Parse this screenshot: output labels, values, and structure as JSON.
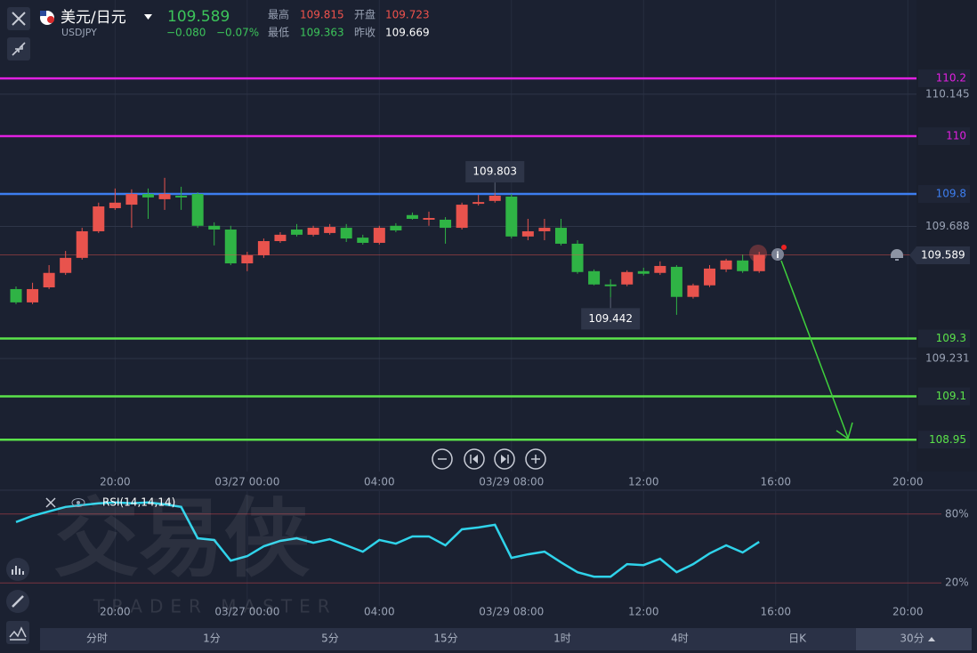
{
  "header": {
    "name": "美元/日元",
    "symbol": "USDJPY",
    "price": 109.589,
    "change": "−0.080",
    "change_pct": "−0.07%",
    "high_label": "最高",
    "high": 109.815,
    "open_label": "开盘",
    "open": 109.723,
    "low_label": "最低",
    "low": 109.363,
    "prev_label": "昨收",
    "prev_close": 109.669
  },
  "chart_data": [
    {
      "type": "candlestick",
      "categories": [
        null,
        null,
        null,
        null,
        null,
        null,
        "20:00",
        null,
        null,
        null,
        null,
        null,
        null,
        null,
        "03/27 00:00",
        null,
        null,
        null,
        null,
        null,
        null,
        null,
        "04:00",
        null,
        null,
        null,
        null,
        null,
        null,
        null,
        "03/29 08:00",
        null,
        null,
        null,
        null,
        null,
        null,
        null,
        "12:00",
        null,
        null,
        null,
        null,
        null,
        null,
        null,
        "16:00",
        null,
        null,
        null,
        null,
        null,
        null,
        null,
        "20:00",
        null
      ],
      "open": [
        109.471,
        109.425,
        109.477,
        109.527,
        109.579,
        109.671,
        109.751,
        109.763,
        109.8,
        109.782,
        109.794,
        109.8,
        109.69,
        109.677,
        109.56,
        109.588,
        109.637,
        109.677,
        109.659,
        109.665,
        109.683,
        109.649,
        109.631,
        109.69,
        109.727,
        109.711,
        109.711,
        109.683,
        109.766,
        109.776,
        109.791,
        109.653,
        109.671,
        109.683,
        109.628,
        109.533,
        109.487,
        109.487,
        109.533,
        109.527,
        109.548,
        109.444,
        109.484,
        109.539,
        109.57,
        109.533,
        null,
        null,
        null,
        null,
        null,
        null,
        null,
        null,
        null,
        null
      ],
      "high": [
        109.48,
        109.493,
        109.554,
        109.603,
        109.683,
        109.77,
        109.819,
        109.816,
        109.819,
        109.856,
        109.825,
        109.806,
        109.702,
        109.69,
        109.6,
        109.646,
        109.668,
        109.696,
        109.69,
        109.696,
        109.696,
        109.659,
        109.69,
        109.699,
        109.736,
        109.739,
        109.72,
        109.77,
        109.797,
        109.803,
        109.8,
        109.714,
        109.714,
        109.714,
        109.64,
        109.539,
        109.505,
        109.536,
        109.545,
        109.567,
        109.554,
        109.49,
        109.554,
        109.576,
        109.591,
        109.6,
        null,
        null,
        null,
        null,
        null,
        null,
        null,
        null,
        null,
        null
      ],
      "low": [
        109.419,
        109.419,
        109.471,
        109.52,
        109.573,
        109.665,
        109.745,
        109.683,
        109.714,
        109.745,
        109.745,
        109.683,
        109.622,
        109.554,
        109.533,
        109.579,
        109.631,
        109.653,
        109.653,
        109.659,
        109.634,
        109.625,
        109.625,
        109.668,
        109.711,
        109.69,
        109.628,
        109.677,
        109.76,
        109.77,
        109.646,
        109.64,
        109.64,
        109.622,
        109.524,
        109.484,
        109.442,
        109.481,
        109.518,
        109.52,
        109.382,
        109.438,
        109.478,
        109.53,
        109.527,
        109.527,
        null,
        null,
        null,
        null,
        null,
        null,
        null,
        null,
        null,
        null
      ],
      "close": [
        109.425,
        109.471,
        109.527,
        109.579,
        109.671,
        109.757,
        109.77,
        109.8,
        109.788,
        109.8,
        109.788,
        109.69,
        109.677,
        109.56,
        109.588,
        109.637,
        109.659,
        109.659,
        109.683,
        109.686,
        109.646,
        109.631,
        109.683,
        109.674,
        109.714,
        109.717,
        109.683,
        109.763,
        109.772,
        109.794,
        109.653,
        109.671,
        109.683,
        109.628,
        109.53,
        109.487,
        109.481,
        109.53,
        109.524,
        109.551,
        109.444,
        109.484,
        109.542,
        109.57,
        109.533,
        109.589,
        null,
        null,
        null,
        null,
        null,
        null,
        null,
        null,
        null,
        null
      ],
      "up_color": "#e8534d",
      "down_color": "#2fb345",
      "ylim": [
        108.84,
        110.471
      ],
      "yticks": [
        110.145,
        109.688,
        109.231
      ],
      "grid": true,
      "levels": [
        110.2,
        110,
        109.8,
        109.3,
        109.1,
        108.95
      ],
      "level_colors": [
        "#e020e0",
        "#e020e0",
        "#3d7ef0",
        "#5be34a",
        "#5be34a",
        "#5be34a"
      ]
    },
    {
      "type": "line",
      "categories": [
        null,
        null,
        null,
        null,
        null,
        null,
        "20:00",
        null,
        null,
        null,
        null,
        null,
        null,
        null,
        "03/27 00:00",
        null,
        null,
        null,
        null,
        null,
        null,
        null,
        "04:00",
        null,
        null,
        null,
        null,
        null,
        null,
        null,
        "03/29 08:00",
        null,
        null,
        null,
        null,
        null,
        null,
        null,
        "12:00",
        null,
        null,
        null,
        null,
        null,
        null,
        null,
        "16:00",
        null,
        null,
        null,
        null,
        null,
        null,
        null,
        "20:00",
        null
      ],
      "series": [
        {
          "name": "RSI(14,14,14)",
          "color": "#2fd3ea",
          "values": [
            73.0,
            78.4,
            82.3,
            86.2,
            87.8,
            89.3,
            90.1,
            89.3,
            90.1,
            88.5,
            86.2,
            58.9,
            57.4,
            39.4,
            43.3,
            51.9,
            56.6,
            58.9,
            55.0,
            58.1,
            52.7,
            47.2,
            57.4,
            54.2,
            60.5,
            60.5,
            52.7,
            66.7,
            68.3,
            70.6,
            41.8,
            44.9,
            47.2,
            37.9,
            29.3,
            25.4,
            25.4,
            36.3,
            35.5,
            41.0,
            29.3,
            36.3,
            45.7,
            52.7,
            46.5,
            55.8,
            null,
            null,
            null,
            null,
            null,
            null,
            null,
            null,
            null,
            null
          ]
        }
      ],
      "ylim": [
        0,
        100
      ],
      "yticks": [
        {
          "value": 80,
          "label": "80%"
        },
        {
          "value": 20,
          "label": "20%"
        }
      ]
    }
  ],
  "watermark": {
    "brand": "交易侠",
    "brand_en": "TRADER MASTER"
  },
  "periods": [
    "分时",
    "1分",
    "5分",
    "15分",
    "1时",
    "4时",
    "日K",
    "30分"
  ]
}
